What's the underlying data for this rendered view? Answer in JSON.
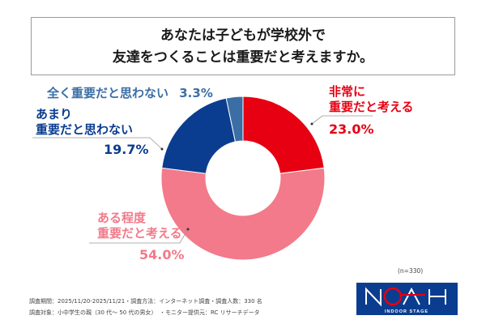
{
  "title": {
    "line1": "あなたは子どもが学校外で",
    "line2": "友達をつくることは重要だと考えますか。"
  },
  "chart_data": {
    "type": "pie",
    "donut": true,
    "categories": [
      "非常に重要だと考える",
      "ある程度重要だと考える",
      "あまり重要だと思わない",
      "全く重要だと思わない"
    ],
    "values": [
      23.0,
      54.0,
      19.7,
      3.3
    ],
    "colors": [
      "#e60012",
      "#f27a8a",
      "#0a3d8f",
      "#3a6ea5"
    ],
    "labels": [
      {
        "lines": [
          "非常に",
          "重要だと考える"
        ],
        "pct": "23.0%"
      },
      {
        "lines": [
          "ある程度",
          "重要だと考える"
        ],
        "pct": "54.0%"
      },
      {
        "lines": [
          "あまり",
          "重要だと思わない"
        ],
        "pct": "19.7%"
      },
      {
        "lines": [
          "全く重要だと思わない"
        ],
        "pct": "3.3%"
      }
    ],
    "legend": "none"
  },
  "sample": "(n=330)",
  "notes": {
    "line1": "調査期間：2025/11/20-2025/11/21・調査方法：インターネット調査・調査人数：330 名",
    "line2": "調査対象：小中学生の親（30 代～ 50 代の男女）　・モニター提供元：RC リサーチデータ"
  },
  "logo": {
    "text": "NOAH",
    "sub": "INDOOR STAGE"
  }
}
